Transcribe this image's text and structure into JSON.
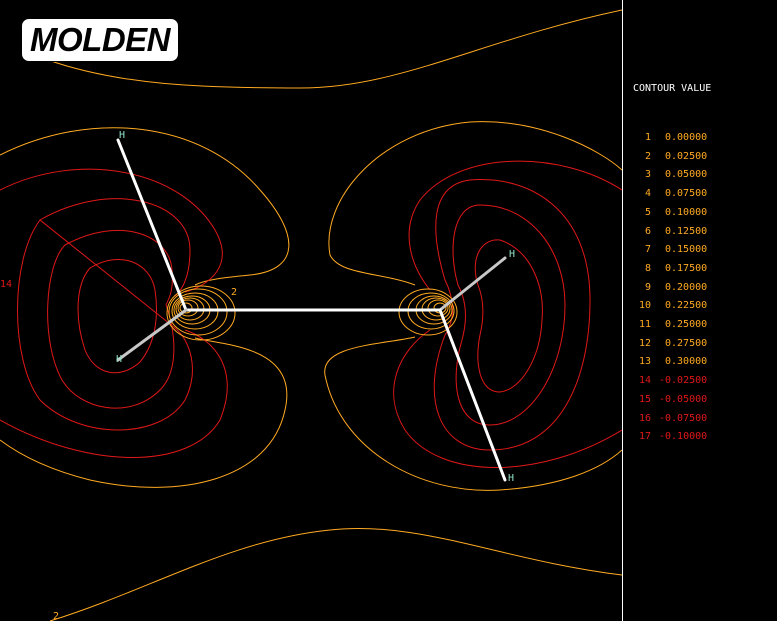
{
  "app": {
    "logo_text": "MOLDEN"
  },
  "colors": {
    "positive": "#ffaa22",
    "negative": "#e01818",
    "bond": "#ffffff",
    "background": "#000000",
    "atom_label": "#8fe0c8"
  },
  "plot": {
    "atom_labels": [
      "H",
      "H",
      "H",
      "H"
    ],
    "contour_labels": {
      "top_left": "2",
      "left_edge": "14",
      "right_edge": "14",
      "bottom_left": "2"
    }
  },
  "legend": {
    "title": "CONTOUR VALUE",
    "rows": [
      {
        "index": "1",
        "value": "0.00000",
        "sign": "positive"
      },
      {
        "index": "2",
        "value": "0.02500",
        "sign": "positive"
      },
      {
        "index": "3",
        "value": "0.05000",
        "sign": "positive"
      },
      {
        "index": "4",
        "value": "0.07500",
        "sign": "positive"
      },
      {
        "index": "5",
        "value": "0.10000",
        "sign": "positive"
      },
      {
        "index": "6",
        "value": "0.12500",
        "sign": "positive"
      },
      {
        "index": "7",
        "value": "0.15000",
        "sign": "positive"
      },
      {
        "index": "8",
        "value": "0.17500",
        "sign": "positive"
      },
      {
        "index": "9",
        "value": "0.20000",
        "sign": "positive"
      },
      {
        "index": "10",
        "value": "0.22500",
        "sign": "positive"
      },
      {
        "index": "11",
        "value": "0.25000",
        "sign": "positive"
      },
      {
        "index": "12",
        "value": "0.27500",
        "sign": "positive"
      },
      {
        "index": "13",
        "value": "0.30000",
        "sign": "positive"
      },
      {
        "index": "14",
        "value": "-0.02500",
        "sign": "negative"
      },
      {
        "index": "15",
        "value": "-0.05000",
        "sign": "negative"
      },
      {
        "index": "16",
        "value": "-0.07500",
        "sign": "negative"
      },
      {
        "index": "17",
        "value": "-0.10000",
        "sign": "negative"
      }
    ]
  }
}
